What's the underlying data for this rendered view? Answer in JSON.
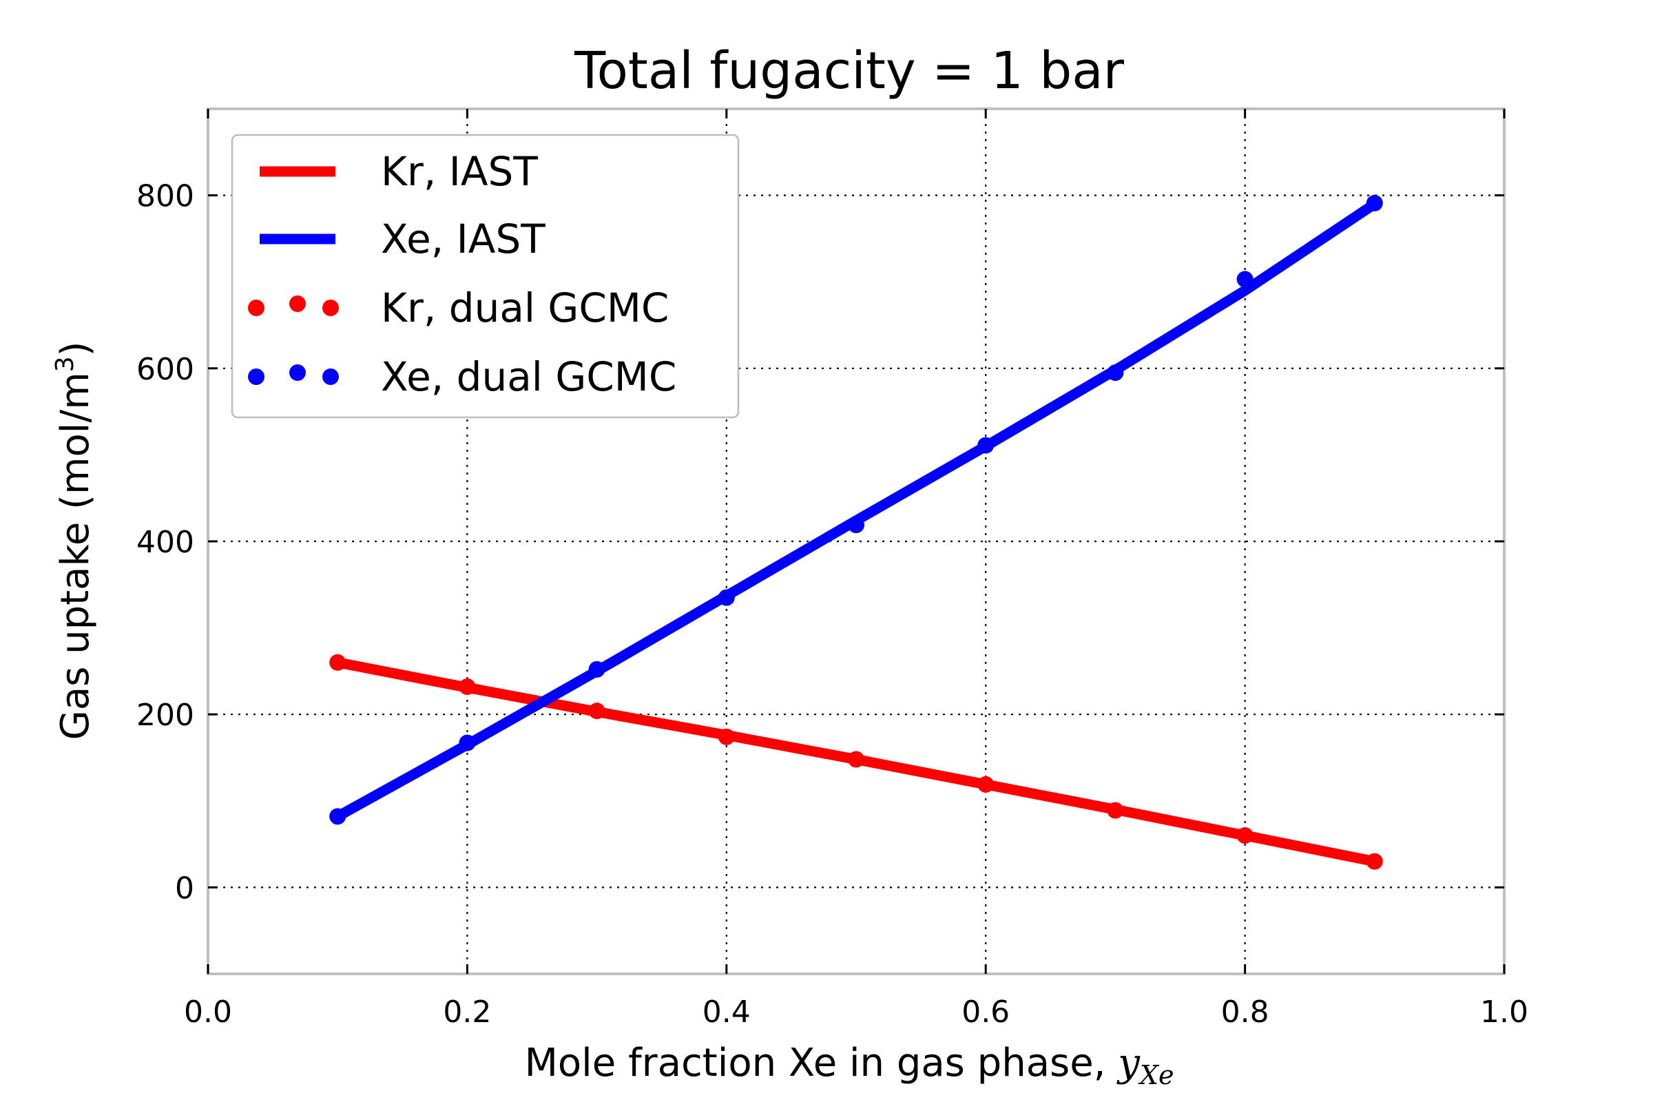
{
  "chart_data": {
    "type": "line",
    "title": "Total fugacity = 1 bar",
    "xlabel": {
      "prefix": "Mole fraction Xe in gas phase, ",
      "symbol": "y",
      "subscript": "Xe"
    },
    "ylabel": {
      "prefix": "Gas uptake (mol/m",
      "superscript": "3",
      "suffix": ")"
    },
    "xlim": [
      0.0,
      1.0
    ],
    "ylim": [
      -100,
      900
    ],
    "xticks": [
      "0.0",
      "0.2",
      "0.4",
      "0.6",
      "0.8",
      "1.0"
    ],
    "yticks": [
      "0",
      "200",
      "400",
      "600",
      "800"
    ],
    "xtick_values": [
      0.0,
      0.2,
      0.4,
      0.6,
      0.8,
      1.0
    ],
    "ytick_values": [
      0,
      200,
      400,
      600,
      800
    ],
    "grid": true,
    "legend_position": "top-left",
    "x": [
      0.1,
      0.2,
      0.3,
      0.4,
      0.5,
      0.6,
      0.7,
      0.8,
      0.9
    ],
    "series": [
      {
        "name": "Kr, IAST",
        "style": "line",
        "color": "#ff0000",
        "values": [
          260,
          231,
          203,
          176,
          148,
          119,
          90,
          60,
          30
        ]
      },
      {
        "name": "Xe, IAST",
        "style": "line",
        "color": "#0000ff",
        "values": [
          82,
          165,
          250,
          337,
          424,
          510,
          598,
          690,
          790
        ]
      },
      {
        "name": "Kr, dual GCMC",
        "style": "markers",
        "color": "#ff0000",
        "values": [
          260,
          232,
          204,
          174,
          148,
          119,
          89,
          60,
          30
        ]
      },
      {
        "name": "Xe, dual GCMC",
        "style": "markers",
        "color": "#0000ff",
        "values": [
          82,
          167,
          252,
          335,
          419,
          511,
          595,
          703,
          791
        ]
      }
    ]
  }
}
